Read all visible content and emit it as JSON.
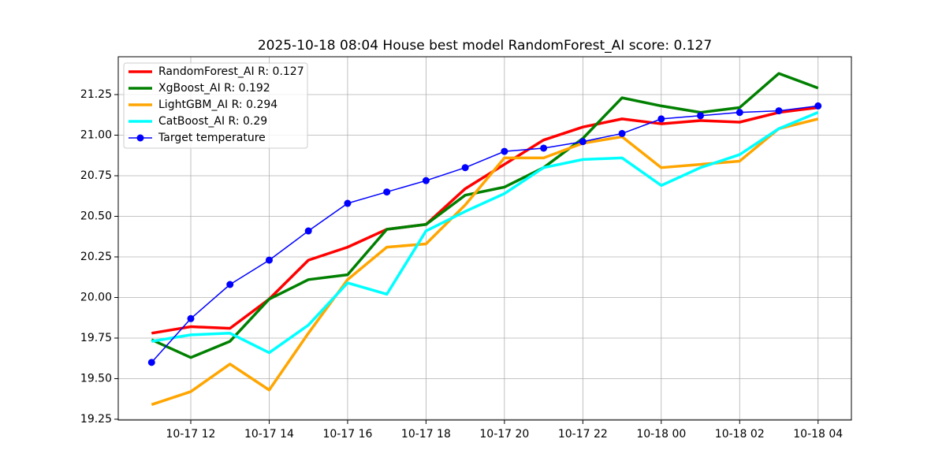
{
  "chart_data": {
    "type": "line",
    "title": "2025-10-18 08:04 House best model RandomForest_AI score: 0.127",
    "x": [
      "10-17 11",
      "10-17 12",
      "10-17 13",
      "10-17 14",
      "10-17 15",
      "10-17 16",
      "10-17 17",
      "10-17 18",
      "10-17 19",
      "10-17 20",
      "10-17 21",
      "10-17 22",
      "10-17 23",
      "10-18 00",
      "10-18 01",
      "10-18 02",
      "10-18 03",
      "10-18 04"
    ],
    "xticks": [
      "10-17 12",
      "10-17 14",
      "10-17 16",
      "10-17 18",
      "10-17 20",
      "10-17 22",
      "10-18 00",
      "10-18 02",
      "10-18 04"
    ],
    "ylim": [
      19.245,
      21.483
    ],
    "yticks": [
      19.25,
      {
        "value": 19.5,
        "label": "19.50"
      },
      19.75,
      {
        "value": 20,
        "label": "20.00"
      },
      20.25,
      {
        "value": 20.5,
        "label": "20.50"
      },
      20.75,
      {
        "value": 21,
        "label": "21.00"
      },
      21.25
    ],
    "grid": true,
    "legend": "upper left",
    "series": [
      {
        "name": "RandomForest_AI R: 0.127",
        "color": "#ff0000",
        "values": [
          19.78,
          19.82,
          19.81,
          19.99,
          20.23,
          20.31,
          20.42,
          20.45,
          20.67,
          20.82,
          20.97,
          21.05,
          21.1,
          21.07,
          21.09,
          21.08,
          21.14,
          21.17
        ]
      },
      {
        "name": "XgBoost_AI R: 0.192",
        "color": "#008000",
        "values": [
          19.74,
          19.63,
          19.73,
          19.99,
          20.11,
          20.14,
          20.42,
          20.45,
          20.63,
          20.68,
          20.8,
          20.98,
          21.23,
          21.18,
          21.14,
          21.17,
          21.38,
          21.29
        ]
      },
      {
        "name": "LightGBM_AI R: 0.294",
        "color": "#ffa500",
        "values": [
          19.34,
          19.42,
          19.59,
          19.43,
          19.78,
          20.11,
          20.31,
          20.33,
          20.57,
          20.86,
          20.86,
          20.95,
          20.99,
          20.8,
          20.82,
          20.84,
          21.04,
          21.1
        ]
      },
      {
        "name": "CatBoost_AI R: 0.29",
        "color": "#00ffff",
        "values": [
          19.73,
          19.77,
          19.78,
          19.66,
          19.83,
          20.09,
          20.02,
          20.41,
          20.53,
          20.64,
          20.8,
          20.85,
          20.86,
          20.69,
          20.8,
          20.88,
          21.04,
          21.14
        ]
      },
      {
        "name": "Target temperature",
        "color": "#0000ff",
        "marker": "o",
        "values": [
          19.6,
          19.87,
          20.08,
          20.23,
          20.41,
          20.58,
          20.65,
          20.72,
          20.8,
          20.9,
          20.92,
          20.96,
          21.01,
          21.1,
          21.12,
          21.14,
          21.15,
          21.18
        ]
      }
    ]
  }
}
